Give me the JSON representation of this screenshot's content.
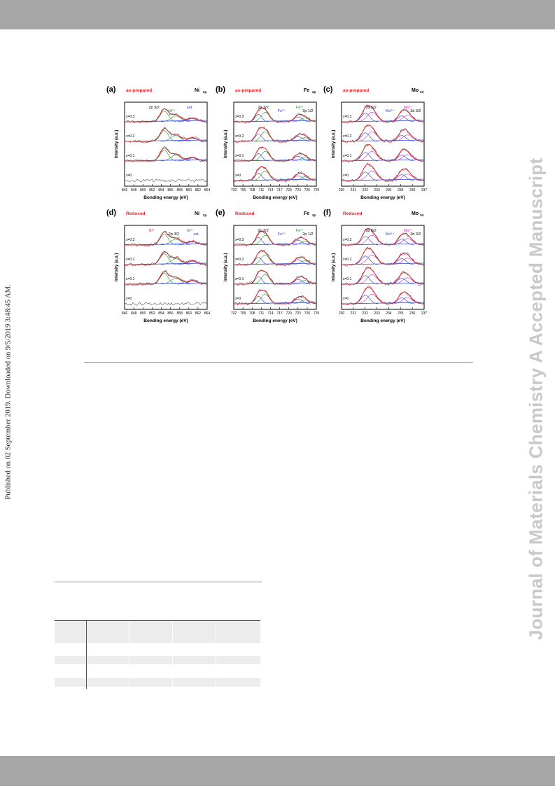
{
  "side_stamp": "Published on 02 September 2019. Downloaded on 9/5/2019 3:48:45 AM.",
  "watermark": "Journal of Materials Chemistry A Accepted Manuscript",
  "figure": {
    "xlabel": "Bonding energy (eV)",
    "ylabel": "Intensity (a.u.)",
    "panels": [
      {
        "id": "a",
        "letter": "(a)",
        "state": "as-prepared",
        "element": "Ni",
        "sub": "2p",
        "ticks": [
          "846",
          "848",
          "850",
          "852",
          "854",
          "856",
          "858",
          "860",
          "862",
          "864"
        ],
        "samples": [
          "x=0.3",
          "x=0.2",
          "x=0.1",
          "x=0"
        ],
        "annotations": [
          {
            "text": "2p 3/2",
            "color": "#000"
          },
          {
            "text": "Ni²⁺",
            "color": "#1f9a1f"
          },
          {
            "text": "sat.",
            "color": "#2b3fd0"
          }
        ]
      },
      {
        "id": "b",
        "letter": "(b)",
        "state": "as-prepared",
        "element": "Fe",
        "sub": "2p",
        "ticks": [
          "702",
          "705",
          "708",
          "711",
          "714",
          "717",
          "720",
          "723",
          "726",
          "729"
        ],
        "samples": [
          "x=0.3",
          "x=0.2",
          "x=0.1",
          "x=0"
        ],
        "annotations": [
          {
            "text": "2p 3/2",
            "color": "#000"
          },
          {
            "text": "Fe²⁺",
            "color": "#2b3fd0"
          },
          {
            "text": "Fe³⁺",
            "color": "#1f9a1f"
          },
          {
            "text": "2p 1/2",
            "color": "#000"
          }
        ]
      },
      {
        "id": "c",
        "letter": "(c)",
        "state": "as-prepared",
        "element": "Mo",
        "sub": "3d",
        "ticks": [
          "230",
          "231",
          "232",
          "233",
          "234",
          "235",
          "236",
          "237"
        ],
        "samples": [
          "x=0.3",
          "x=0.2",
          "x=0.1",
          "x=0"
        ],
        "annotations": [
          {
            "text": "3d 5/2",
            "color": "#000"
          },
          {
            "text": "Mo⁶⁺",
            "color": "#2b3fd0"
          },
          {
            "text": "Mo⁵⁺",
            "color": "#d21fd2"
          },
          {
            "text": "3d 3/2",
            "color": "#000"
          }
        ]
      },
      {
        "id": "d",
        "letter": "(d)",
        "state": "Reduced",
        "element": "Ni",
        "sub": "2p",
        "ticks": [
          "846",
          "848",
          "850",
          "852",
          "854",
          "856",
          "858",
          "860",
          "862",
          "864"
        ],
        "samples": [
          "x=0.3",
          "x=0.2",
          "x=0.1",
          "x=0"
        ],
        "annotations": [
          {
            "text": "Ni⁰",
            "color": "#d21fd2"
          },
          {
            "text": "2p 3/2",
            "color": "#000"
          },
          {
            "text": "Ni²⁺",
            "color": "#1f9a1f"
          },
          {
            "text": "sat.",
            "color": "#2b3fd0"
          }
        ]
      },
      {
        "id": "e",
        "letter": "(e)",
        "state": "Reduced",
        "element": "Fe",
        "sub": "2p",
        "ticks": [
          "702",
          "705",
          "708",
          "711",
          "714",
          "717",
          "720",
          "723",
          "726",
          "729"
        ],
        "samples": [
          "x=0.3",
          "x=0.2",
          "x=0.1",
          "x=0"
        ],
        "annotations": [
          {
            "text": "2p 3/2",
            "color": "#000"
          },
          {
            "text": "Fe²⁺",
            "color": "#2b3fd0"
          },
          {
            "text": "Fe³⁺",
            "color": "#1f9a1f"
          },
          {
            "text": "2p 1/2",
            "color": "#000"
          }
        ]
      },
      {
        "id": "f",
        "letter": "(f)",
        "state": "Reduced",
        "element": "Mo",
        "sub": "3d",
        "ticks": [
          "230",
          "231",
          "232",
          "233",
          "234",
          "235",
          "236",
          "237"
        ],
        "samples": [
          "x=0.3",
          "x=0.2",
          "x=0.1",
          "x=0"
        ],
        "annotations": [
          {
            "text": "3d 5/2",
            "color": "#000"
          },
          {
            "text": "Mo⁶⁺",
            "color": "#2b3fd0"
          },
          {
            "text": "Mo⁵⁺",
            "color": "#d21fd2"
          },
          {
            "text": "3d 3/2",
            "color": "#000"
          }
        ]
      }
    ]
  },
  "colors": {
    "bar": "#a6a6a6",
    "watermark": "#c9c9c9",
    "state_label": "#e8232a",
    "raw": "#555555",
    "envelope": "#e8232a",
    "fit_green": "#1f9a1f",
    "fit_blue": "#2b3fd0",
    "fit_magenta": "#d21fd2",
    "background_line": "#3545d6"
  }
}
